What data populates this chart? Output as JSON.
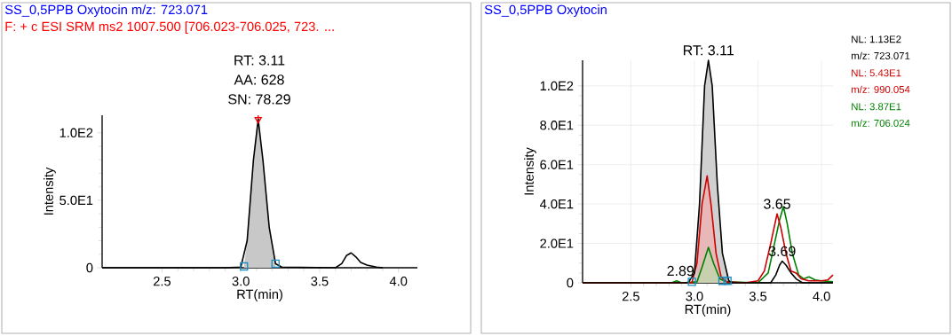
{
  "chart_data": [
    {
      "type": "line",
      "title": "SS_0,5PPB Oxytocin m/z: 723.071",
      "subtitle": "F: + c ESI SRM ms2 1007.500 [706.023-706.025, 723. ...",
      "xlabel": "RT(min)",
      "ylabel": "Intensity",
      "xlim": [
        2.12,
        4.12
      ],
      "ylim": [
        0,
        113
      ],
      "xticks": [
        {
          "value": 2.5,
          "label": "2.5"
        },
        {
          "value": 3.0,
          "label": "3.0"
        },
        {
          "value": 3.5,
          "label": "3.5"
        },
        {
          "value": 4.0,
          "label": "4.0"
        }
      ],
      "yticks": [
        {
          "value": 0,
          "label": "0"
        },
        {
          "value": 50,
          "label": "5.0E1"
        },
        {
          "value": 100,
          "label": "1.0E2"
        }
      ],
      "grid": false,
      "series": [
        {
          "type": "area",
          "color": "#c8c8c8",
          "x": [
            3.02,
            3.04,
            3.08,
            3.11,
            3.14,
            3.18,
            3.22
          ],
          "values": [
            1,
            20,
            80,
            110,
            80,
            30,
            3
          ]
        },
        {
          "color": "#000000",
          "x": [
            2.12,
            2.9,
            3.0,
            3.04,
            3.08,
            3.11,
            3.14,
            3.18,
            3.22,
            3.26,
            3.6,
            3.64,
            3.67,
            3.7,
            3.73,
            3.76,
            3.8,
            3.86,
            3.9
          ],
          "values": [
            0,
            0,
            0.5,
            20,
            80,
            110,
            80,
            30,
            3,
            0.5,
            0,
            3,
            9,
            11,
            8,
            4,
            2,
            0.5,
            0
          ]
        },
        {
          "type": "scatter",
          "marker": "square",
          "color": "#1f8fbf",
          "x": [
            3.02,
            3.22
          ],
          "values": [
            1,
            3
          ]
        },
        {
          "type": "scatter",
          "marker": "triangle",
          "color": "#ff0000",
          "x": [
            3.11
          ],
          "values": [
            110
          ]
        }
      ],
      "ref_lines": [
        {
          "axis": "x",
          "value": 3.11,
          "color": "#ff0000"
        }
      ],
      "annotations": [
        "RT: 3.11",
        "AA: 628",
        "SN: 78.29"
      ]
    },
    {
      "type": "line",
      "title": "SS_0,5PPB Oxytocin",
      "xlabel": "RT(min)",
      "ylabel": "Intensity",
      "xlim": [
        2.12,
        4.09
      ],
      "ylim": [
        0,
        113
      ],
      "xticks": [
        {
          "value": 2.5,
          "label": "2.5"
        },
        {
          "value": 3.0,
          "label": "3.0"
        },
        {
          "value": 3.5,
          "label": "3.5"
        },
        {
          "value": 4.0,
          "label": "4.0"
        }
      ],
      "yticks": [
        {
          "value": 0,
          "label": "0"
        },
        {
          "value": 20,
          "label": "2.0E1"
        },
        {
          "value": 40,
          "label": "4.0E1"
        },
        {
          "value": 60,
          "label": "6.0E1"
        },
        {
          "value": 80,
          "label": "8.0E1"
        },
        {
          "value": 100,
          "label": "1.0E2"
        }
      ],
      "grid": true,
      "legend": "top right",
      "series": [
        {
          "type": "area",
          "color": "#d0d0d0",
          "x": [
            3.0,
            3.04,
            3.08,
            3.11,
            3.14,
            3.18,
            3.22,
            3.27
          ],
          "values": [
            5,
            40,
            100,
            113,
            100,
            50,
            15,
            1
          ]
        },
        {
          "type": "area",
          "color": "#e8b8b8",
          "x": [
            3.02,
            3.06,
            3.1,
            3.13,
            3.17,
            3.21,
            3.25
          ],
          "values": [
            10,
            40,
            54.3,
            40,
            15,
            3,
            0.5
          ]
        },
        {
          "type": "area",
          "color": "#c8d0b0",
          "x": [
            3.02,
            3.06,
            3.11,
            3.15,
            3.2,
            3.25
          ],
          "values": [
            0.5,
            8,
            18,
            10,
            2,
            0.5
          ]
        },
        {
          "name": "NL: 1.13E2 m/z: 723.071",
          "color": "#000000",
          "x": [
            2.12,
            2.95,
            3.0,
            3.04,
            3.08,
            3.11,
            3.14,
            3.18,
            3.22,
            3.27,
            3.3,
            3.6,
            3.64,
            3.67,
            3.69,
            3.72,
            3.76,
            3.8,
            3.85,
            4.09
          ],
          "values": [
            0,
            0,
            5,
            40,
            100,
            113,
            100,
            50,
            15,
            1,
            0,
            0,
            4,
            9,
            11,
            9,
            5,
            2,
            0,
            0
          ]
        },
        {
          "name": "NL: 5.43E1 m/z: 990.054",
          "color": "#cc0000",
          "x": [
            2.12,
            2.98,
            3.02,
            3.06,
            3.1,
            3.13,
            3.17,
            3.21,
            3.25,
            3.4,
            3.5,
            3.55,
            3.6,
            3.65,
            3.68,
            3.72,
            3.76,
            3.8,
            3.84,
            3.9,
            4.0,
            4.05,
            4.09
          ],
          "values": [
            0,
            0,
            10,
            40,
            54.3,
            40,
            15,
            3,
            0.5,
            0,
            1,
            6,
            20,
            35,
            28,
            15,
            6,
            5,
            2,
            1,
            1,
            1.5,
            4
          ]
        },
        {
          "name": "NL: 3.87E1 m/z: 706.024",
          "color": "#008000",
          "x": [
            2.12,
            2.82,
            2.86,
            2.9,
            3.02,
            3.06,
            3.11,
            3.15,
            3.2,
            3.25,
            3.5,
            3.58,
            3.63,
            3.67,
            3.7,
            3.73,
            3.77,
            3.82,
            3.86,
            3.9,
            3.95,
            4.0,
            4.09
          ],
          "values": [
            0,
            0,
            1,
            0,
            0.5,
            8,
            18,
            10,
            2,
            0.5,
            0,
            5,
            20,
            32,
            38.7,
            30,
            15,
            4,
            2,
            3,
            1.5,
            1,
            0.5
          ]
        },
        {
          "type": "scatter",
          "marker": "square",
          "color": "#1f8fbf",
          "x": [
            2.98,
            3.22,
            3.26
          ],
          "values": [
            0.5,
            1,
            1
          ]
        }
      ],
      "annotations": [
        {
          "text": "RT: 3.11",
          "x": 3.11,
          "y": 113
        },
        {
          "text": "2.89",
          "x": 2.89,
          "y": 1
        },
        {
          "text": "3.65",
          "x": 3.65,
          "y": 35
        },
        {
          "text": "3.69",
          "x": 3.69,
          "y": 11
        }
      ]
    }
  ]
}
